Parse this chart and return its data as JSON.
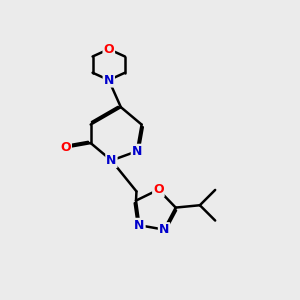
{
  "bg_color": "#ebebeb",
  "bond_color": "#000000",
  "nitrogen_color": "#0000cc",
  "oxygen_color": "#ff0000",
  "line_width": 1.8,
  "dbo": 0.055,
  "figsize": [
    3.0,
    3.0
  ],
  "dpi": 100,
  "xlim": [
    0,
    10
  ],
  "ylim": [
    0,
    10
  ]
}
